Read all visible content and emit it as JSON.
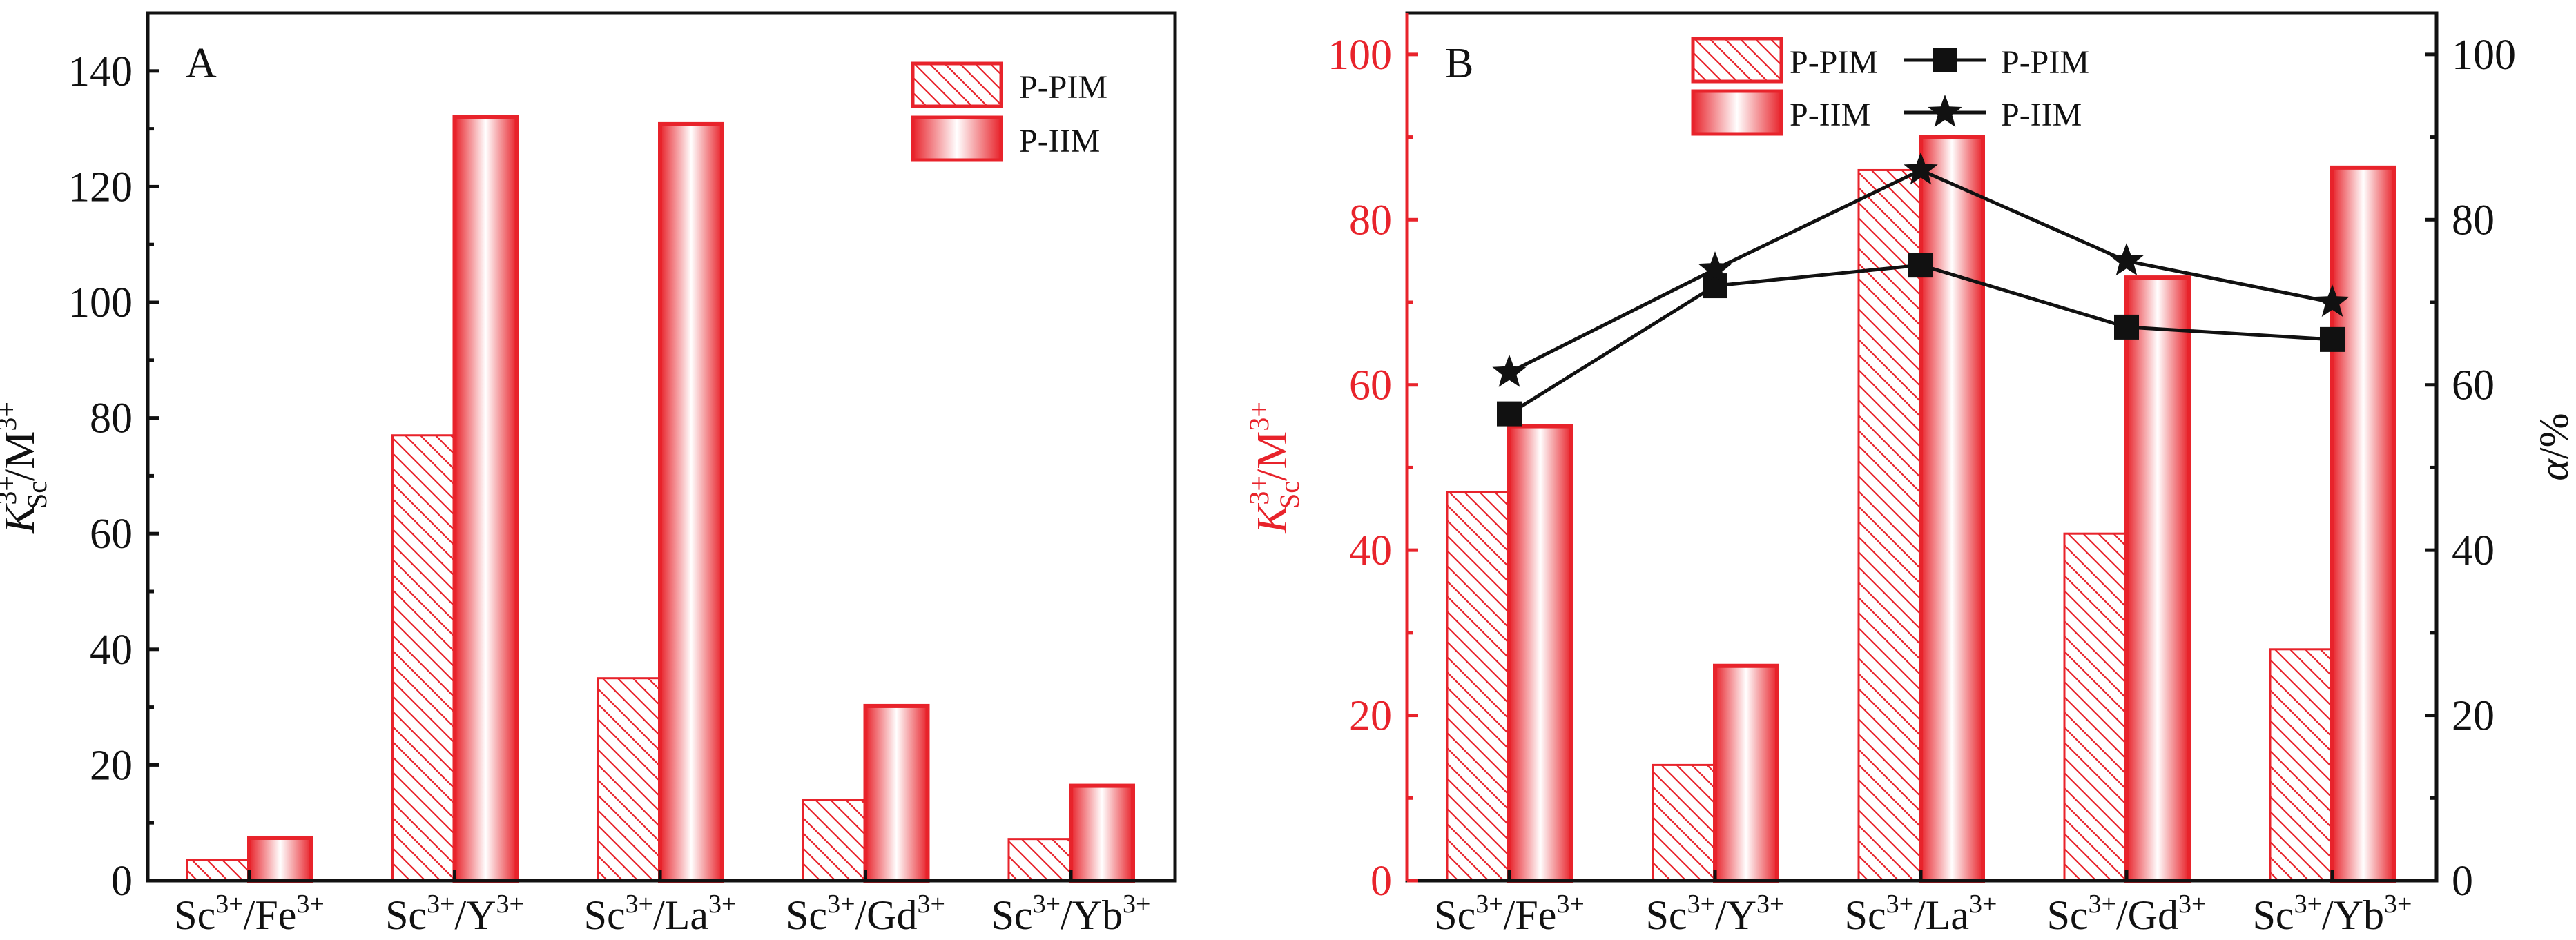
{
  "colors": {
    "bar_red": "#e8232b",
    "axis_black": "#111111",
    "left_axis_b": "#e8232b"
  },
  "chart_data": [
    {
      "type": "bar",
      "panel_label": "A",
      "title": "",
      "xlabel": "",
      "ylabel": {
        "main": "K",
        "sub": "Sc",
        "sup": "3+",
        "rest": "/M",
        "rest_sup": "3+"
      },
      "categories": [
        {
          "ion": "Sc",
          "ion_sup": "3+",
          "other": "/Fe",
          "other_sup": "3+"
        },
        {
          "ion": "Sc",
          "ion_sup": "3+",
          "other": "/Y",
          "other_sup": "3+"
        },
        {
          "ion": "Sc",
          "ion_sup": "3+",
          "other": "/La",
          "other_sup": "3+"
        },
        {
          "ion": "Sc",
          "ion_sup": "3+",
          "other": "/Gd",
          "other_sup": "3+"
        },
        {
          "ion": "Sc",
          "ion_sup": "3+",
          "other": "/Yb",
          "other_sup": "3+"
        }
      ],
      "ylim": [
        0,
        150
      ],
      "yticks": [
        "0",
        "20",
        "40",
        "60",
        "80",
        "100",
        "120",
        "140"
      ],
      "series": [
        {
          "name": "P-PIM",
          "style": "hatched",
          "values": [
            3.6,
            77,
            35,
            14,
            7.2
          ]
        },
        {
          "name": "P-IIM",
          "style": "gradient",
          "values": [
            7.4,
            132,
            130.8,
            30.2,
            16.4
          ]
        }
      ],
      "legend": "top-right"
    },
    {
      "type": "bar+line",
      "panel_label": "B",
      "title": "",
      "xlabel": "",
      "ylabel": {
        "main": "K",
        "sub": "Sc",
        "sup": "3+",
        "rest": "/M",
        "rest_sup": "3+"
      },
      "y2label": {
        "main": "α",
        "rest": "/%"
      },
      "categories": [
        {
          "ion": "Sc",
          "ion_sup": "3+",
          "other": "/Fe",
          "other_sup": "3+"
        },
        {
          "ion": "Sc",
          "ion_sup": "3+",
          "other": "/Y",
          "other_sup": "3+"
        },
        {
          "ion": "Sc",
          "ion_sup": "3+",
          "other": "/La",
          "other_sup": "3+"
        },
        {
          "ion": "Sc",
          "ion_sup": "3+",
          "other": "/Gd",
          "other_sup": "3+"
        },
        {
          "ion": "Sc",
          "ion_sup": "3+",
          "other": "/Yb",
          "other_sup": "3+"
        }
      ],
      "ylim": [
        0,
        105
      ],
      "y2lim": [
        0,
        105
      ],
      "yticks": [
        "0",
        "20",
        "40",
        "60",
        "80",
        "100"
      ],
      "y2ticks": [
        "0",
        "20",
        "40",
        "60",
        "80",
        "100"
      ],
      "series": [
        {
          "name": "P-PIM",
          "style": "hatched",
          "axis": "left",
          "values": [
            47,
            14,
            86,
            42,
            28
          ]
        },
        {
          "name": "P-IIM",
          "style": "gradient",
          "axis": "left",
          "values": [
            55,
            26,
            90,
            73,
            86.3
          ]
        }
      ],
      "line_series": [
        {
          "name": "P-PIM",
          "marker": "square",
          "axis": "right",
          "values": [
            56.5,
            72,
            74.5,
            67,
            65.5
          ]
        },
        {
          "name": "P-IIM",
          "marker": "star",
          "axis": "right",
          "values": [
            61.5,
            74,
            86,
            75,
            70
          ]
        }
      ],
      "legend": "top-center"
    }
  ]
}
